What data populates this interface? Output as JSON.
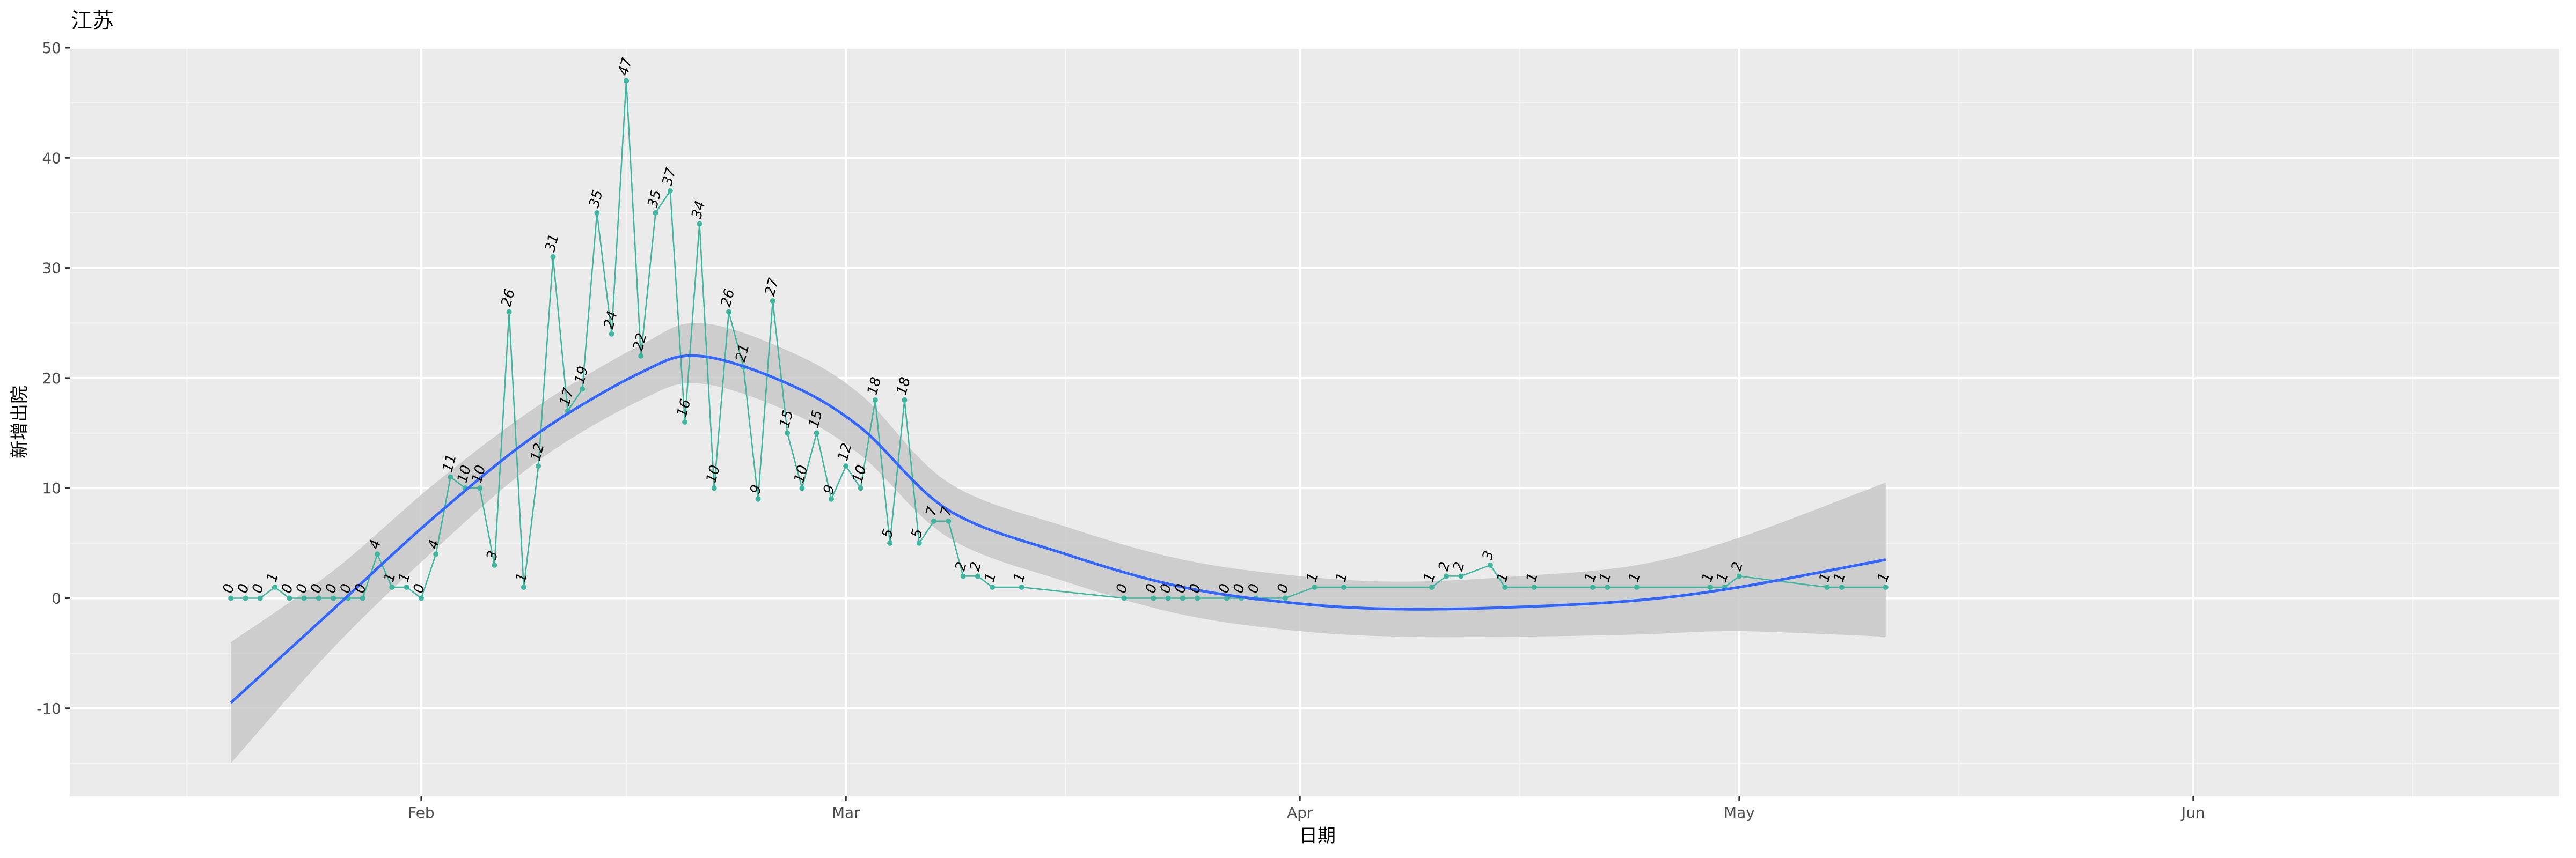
{
  "chart_data": {
    "type": "line",
    "title": "江苏",
    "xlabel": "日期",
    "ylabel": "新增出院",
    "xlim": [
      "2020-01-08",
      "2020-06-26"
    ],
    "ylim": [
      -18,
      50
    ],
    "x_ticks": [
      {
        "date": "2020-02-01",
        "label": "Feb"
      },
      {
        "date": "2020-03-01",
        "label": "Mar"
      },
      {
        "date": "2020-04-01",
        "label": "Apr"
      },
      {
        "date": "2020-05-01",
        "label": "May"
      },
      {
        "date": "2020-06-01",
        "label": "Jun"
      }
    ],
    "x_minor_ticks": [
      "2020-01-16",
      "2020-02-15",
      "2020-03-16",
      "2020-04-16",
      "2020-05-16",
      "2020-06-16"
    ],
    "y_ticks": [
      -10,
      0,
      10,
      20,
      30,
      40,
      50
    ],
    "y_minor_ticks": [
      -15,
      -5,
      5,
      15,
      25,
      35,
      45
    ],
    "grid": true,
    "series": [
      {
        "kind": "observed",
        "color": "#3fb59f",
        "points": [
          {
            "x": "2020-01-19",
            "y": 0
          },
          {
            "x": "2020-01-20",
            "y": 0
          },
          {
            "x": "2020-01-21",
            "y": 0
          },
          {
            "x": "2020-01-22",
            "y": 1
          },
          {
            "x": "2020-01-23",
            "y": 0
          },
          {
            "x": "2020-01-24",
            "y": 0
          },
          {
            "x": "2020-01-25",
            "y": 0
          },
          {
            "x": "2020-01-26",
            "y": 0
          },
          {
            "x": "2020-01-27",
            "y": 0
          },
          {
            "x": "2020-01-28",
            "y": 0
          },
          {
            "x": "2020-01-29",
            "y": 4
          },
          {
            "x": "2020-01-30",
            "y": 1
          },
          {
            "x": "2020-01-31",
            "y": 1
          },
          {
            "x": "2020-02-01",
            "y": 0
          },
          {
            "x": "2020-02-02",
            "y": 4
          },
          {
            "x": "2020-02-03",
            "y": 11
          },
          {
            "x": "2020-02-04",
            "y": 10
          },
          {
            "x": "2020-02-05",
            "y": 10
          },
          {
            "x": "2020-02-06",
            "y": 3
          },
          {
            "x": "2020-02-07",
            "y": 26
          },
          {
            "x": "2020-02-08",
            "y": 1
          },
          {
            "x": "2020-02-09",
            "y": 12
          },
          {
            "x": "2020-02-10",
            "y": 31
          },
          {
            "x": "2020-02-11",
            "y": 17
          },
          {
            "x": "2020-02-12",
            "y": 19
          },
          {
            "x": "2020-02-13",
            "y": 35
          },
          {
            "x": "2020-02-14",
            "y": 24
          },
          {
            "x": "2020-02-15",
            "y": 47
          },
          {
            "x": "2020-02-16",
            "y": 22
          },
          {
            "x": "2020-02-17",
            "y": 35
          },
          {
            "x": "2020-02-18",
            "y": 37
          },
          {
            "x": "2020-02-19",
            "y": 16
          },
          {
            "x": "2020-02-20",
            "y": 34
          },
          {
            "x": "2020-02-21",
            "y": 10
          },
          {
            "x": "2020-02-22",
            "y": 26
          },
          {
            "x": "2020-02-23",
            "y": 21
          },
          {
            "x": "2020-02-24",
            "y": 9
          },
          {
            "x": "2020-02-25",
            "y": 27
          },
          {
            "x": "2020-02-26",
            "y": 15
          },
          {
            "x": "2020-02-27",
            "y": 10
          },
          {
            "x": "2020-02-28",
            "y": 15
          },
          {
            "x": "2020-02-29",
            "y": 9
          },
          {
            "x": "2020-03-01",
            "y": 12
          },
          {
            "x": "2020-03-02",
            "y": 10
          },
          {
            "x": "2020-03-03",
            "y": 18
          },
          {
            "x": "2020-03-04",
            "y": 5
          },
          {
            "x": "2020-03-05",
            "y": 18
          },
          {
            "x": "2020-03-06",
            "y": 5
          },
          {
            "x": "2020-03-07",
            "y": 7
          },
          {
            "x": "2020-03-08",
            "y": 7
          },
          {
            "x": "2020-03-09",
            "y": 2
          },
          {
            "x": "2020-03-10",
            "y": 2
          },
          {
            "x": "2020-03-11",
            "y": 1
          },
          {
            "x": "2020-03-13",
            "y": 1
          },
          {
            "x": "2020-03-20",
            "y": 0
          },
          {
            "x": "2020-03-22",
            "y": 0
          },
          {
            "x": "2020-03-23",
            "y": 0
          },
          {
            "x": "2020-03-24",
            "y": 0
          },
          {
            "x": "2020-03-25",
            "y": 0
          },
          {
            "x": "2020-03-27",
            "y": 0
          },
          {
            "x": "2020-03-28",
            "y": 0
          },
          {
            "x": "2020-03-29",
            "y": 0
          },
          {
            "x": "2020-03-31",
            "y": 0
          },
          {
            "x": "2020-04-02",
            "y": 1
          },
          {
            "x": "2020-04-04",
            "y": 1
          },
          {
            "x": "2020-04-10",
            "y": 1
          },
          {
            "x": "2020-04-11",
            "y": 2
          },
          {
            "x": "2020-04-12",
            "y": 2
          },
          {
            "x": "2020-04-14",
            "y": 3
          },
          {
            "x": "2020-04-15",
            "y": 1
          },
          {
            "x": "2020-04-17",
            "y": 1
          },
          {
            "x": "2020-04-21",
            "y": 1
          },
          {
            "x": "2020-04-22",
            "y": 1
          },
          {
            "x": "2020-04-24",
            "y": 1
          },
          {
            "x": "2020-04-29",
            "y": 1
          },
          {
            "x": "2020-04-30",
            "y": 1
          },
          {
            "x": "2020-05-01",
            "y": 2
          },
          {
            "x": "2020-05-07",
            "y": 1
          },
          {
            "x": "2020-05-08",
            "y": 1
          },
          {
            "x": "2020-05-11",
            "y": 1
          }
        ]
      },
      {
        "kind": "smooth",
        "color": "#3366ff",
        "band_color": "#c8c8c8",
        "points": [
          {
            "x": "2020-01-19",
            "y": -9.5,
            "lo": -15.0,
            "hi": -4.0
          },
          {
            "x": "2020-01-26",
            "y": -1.0,
            "lo": -4.5,
            "hi": 2.5
          },
          {
            "x": "2020-02-02",
            "y": 7.5,
            "lo": 4.5,
            "hi": 10.5
          },
          {
            "x": "2020-02-09",
            "y": 15.0,
            "lo": 12.5,
            "hi": 17.5
          },
          {
            "x": "2020-02-16",
            "y": 20.5,
            "lo": 18.0,
            "hi": 23.0
          },
          {
            "x": "2020-02-20",
            "y": 22.0,
            "lo": 19.5,
            "hi": 25.0
          },
          {
            "x": "2020-02-26",
            "y": 19.5,
            "lo": 17.0,
            "hi": 22.5
          },
          {
            "x": "2020-03-02",
            "y": 15.5,
            "lo": 13.0,
            "hi": 18.5
          },
          {
            "x": "2020-03-08",
            "y": 8.0,
            "lo": 5.5,
            "hi": 10.5
          },
          {
            "x": "2020-03-16",
            "y": 4.0,
            "lo": 1.5,
            "hi": 6.5
          },
          {
            "x": "2020-03-24",
            "y": 1.0,
            "lo": -1.5,
            "hi": 3.5
          },
          {
            "x": "2020-04-01",
            "y": -0.5,
            "lo": -3.0,
            "hi": 2.0
          },
          {
            "x": "2020-04-08",
            "y": -1.0,
            "lo": -3.5,
            "hi": 1.5
          },
          {
            "x": "2020-04-16",
            "y": -0.8,
            "lo": -3.5,
            "hi": 2.0
          },
          {
            "x": "2020-04-24",
            "y": -0.2,
            "lo": -3.3,
            "hi": 3.0
          },
          {
            "x": "2020-05-01",
            "y": 1.0,
            "lo": -3.0,
            "hi": 5.5
          },
          {
            "x": "2020-05-11",
            "y": 3.5,
            "lo": -3.5,
            "hi": 10.5
          }
        ]
      }
    ]
  }
}
